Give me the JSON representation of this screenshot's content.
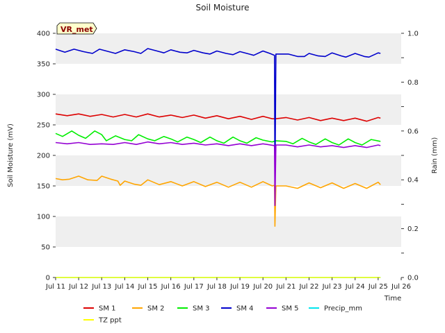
{
  "chart_data": {
    "type": "line",
    "title": "Soil Moisture",
    "badge": "VR_met",
    "xlabel": "Time",
    "ylabel": "Soil Moisture (mV)",
    "y2label": "Rain (mm)",
    "ylim": [
      0,
      400
    ],
    "y2lim": [
      0.0,
      1.0
    ],
    "xlim_days": [
      11,
      26
    ],
    "x_ticks": [
      "Jul 11",
      "Jul 12",
      "Jul 13",
      "Jul 14",
      "Jul 15",
      "Jul 16",
      "Jul 17",
      "Jul 18",
      "Jul 19",
      "Jul 20",
      "Jul 21",
      "Jul 22",
      "Jul 23",
      "Jul 24",
      "Jul 25",
      "Jul 26"
    ],
    "y_ticks": [
      "0",
      "50",
      "100",
      "150",
      "200",
      "250",
      "300",
      "350",
      "400"
    ],
    "y2_ticks": [
      "0.0",
      "0.2",
      "0.4",
      "0.6",
      "0.8",
      "1.0"
    ],
    "grid": "horizontal bands",
    "legend_position": "bottom",
    "series": [
      {
        "name": "SM 1",
        "color": "#dd0000",
        "points": [
          [
            11.0,
            268
          ],
          [
            11.5,
            265
          ],
          [
            12.0,
            268
          ],
          [
            12.5,
            264
          ],
          [
            13.0,
            267
          ],
          [
            13.5,
            263
          ],
          [
            14.0,
            267
          ],
          [
            14.5,
            263
          ],
          [
            15.0,
            268
          ],
          [
            15.5,
            263
          ],
          [
            16.0,
            266
          ],
          [
            16.5,
            262
          ],
          [
            17.0,
            266
          ],
          [
            17.5,
            261
          ],
          [
            18.0,
            265
          ],
          [
            18.5,
            260
          ],
          [
            19.0,
            264
          ],
          [
            19.5,
            259
          ],
          [
            20.0,
            264
          ],
          [
            20.4,
            260
          ],
          [
            20.55,
            260
          ],
          [
            21.0,
            262
          ],
          [
            21.5,
            258
          ],
          [
            22.0,
            262
          ],
          [
            22.5,
            257
          ],
          [
            23.0,
            261
          ],
          [
            23.5,
            257
          ],
          [
            24.0,
            261
          ],
          [
            24.5,
            256
          ],
          [
            25.0,
            262
          ],
          [
            25.1,
            261
          ]
        ]
      },
      {
        "name": "SM 2",
        "color": "#ffa500",
        "points": [
          [
            11.0,
            162
          ],
          [
            11.3,
            160
          ],
          [
            11.6,
            161
          ],
          [
            12.0,
            166
          ],
          [
            12.4,
            160
          ],
          [
            12.8,
            159
          ],
          [
            13.0,
            166
          ],
          [
            13.4,
            161
          ],
          [
            13.7,
            158
          ],
          [
            13.8,
            151
          ],
          [
            14.0,
            158
          ],
          [
            14.4,
            153
          ],
          [
            14.7,
            151
          ],
          [
            15.0,
            160
          ],
          [
            15.5,
            152
          ],
          [
            16.0,
            157
          ],
          [
            16.5,
            150
          ],
          [
            17.0,
            157
          ],
          [
            17.5,
            149
          ],
          [
            18.0,
            156
          ],
          [
            18.5,
            148
          ],
          [
            19.0,
            156
          ],
          [
            19.5,
            148
          ],
          [
            20.0,
            157
          ],
          [
            20.4,
            150
          ],
          [
            20.5,
            151
          ],
          [
            20.52,
            84
          ],
          [
            20.56,
            150
          ],
          [
            21.0,
            150
          ],
          [
            21.5,
            146
          ],
          [
            22.0,
            155
          ],
          [
            22.5,
            147
          ],
          [
            23.0,
            155
          ],
          [
            23.5,
            146
          ],
          [
            24.0,
            154
          ],
          [
            24.5,
            146
          ],
          [
            25.0,
            156
          ],
          [
            25.1,
            152
          ]
        ]
      },
      {
        "name": "SM 3",
        "color": "#00ee00",
        "points": [
          [
            11.0,
            236
          ],
          [
            11.3,
            231
          ],
          [
            11.7,
            240
          ],
          [
            12.0,
            233
          ],
          [
            12.3,
            228
          ],
          [
            12.7,
            240
          ],
          [
            13.0,
            234
          ],
          [
            13.2,
            224
          ],
          [
            13.6,
            232
          ],
          [
            14.0,
            226
          ],
          [
            14.3,
            224
          ],
          [
            14.6,
            234
          ],
          [
            15.0,
            227
          ],
          [
            15.3,
            224
          ],
          [
            15.7,
            231
          ],
          [
            16.0,
            227
          ],
          [
            16.3,
            222
          ],
          [
            16.7,
            230
          ],
          [
            17.0,
            226
          ],
          [
            17.3,
            221
          ],
          [
            17.7,
            230
          ],
          [
            18.0,
            224
          ],
          [
            18.3,
            220
          ],
          [
            18.7,
            230
          ],
          [
            19.0,
            224
          ],
          [
            19.3,
            220
          ],
          [
            19.7,
            229
          ],
          [
            20.0,
            225
          ],
          [
            20.4,
            222
          ],
          [
            20.55,
            224
          ],
          [
            21.0,
            223
          ],
          [
            21.3,
            219
          ],
          [
            21.7,
            228
          ],
          [
            22.0,
            222
          ],
          [
            22.3,
            218
          ],
          [
            22.7,
            227
          ],
          [
            23.0,
            221
          ],
          [
            23.3,
            217
          ],
          [
            23.7,
            227
          ],
          [
            24.0,
            221
          ],
          [
            24.3,
            217
          ],
          [
            24.7,
            226
          ],
          [
            25.1,
            223
          ]
        ]
      },
      {
        "name": "SM 4",
        "color": "#0000cc",
        "points": [
          [
            11.0,
            374
          ],
          [
            11.4,
            369
          ],
          [
            11.8,
            374
          ],
          [
            12.2,
            370
          ],
          [
            12.6,
            367
          ],
          [
            12.9,
            374
          ],
          [
            13.3,
            370
          ],
          [
            13.6,
            367
          ],
          [
            14.0,
            373
          ],
          [
            14.4,
            370
          ],
          [
            14.7,
            367
          ],
          [
            15.0,
            375
          ],
          [
            15.4,
            371
          ],
          [
            15.7,
            368
          ],
          [
            16.0,
            373
          ],
          [
            16.4,
            369
          ],
          [
            16.7,
            368
          ],
          [
            17.0,
            372
          ],
          [
            17.4,
            368
          ],
          [
            17.7,
            366
          ],
          [
            18.0,
            371
          ],
          [
            18.4,
            367
          ],
          [
            18.7,
            365
          ],
          [
            19.0,
            370
          ],
          [
            19.4,
            366
          ],
          [
            19.6,
            364
          ],
          [
            20.0,
            371
          ],
          [
            20.3,
            367
          ],
          [
            20.5,
            364
          ],
          [
            20.52,
            144
          ],
          [
            20.56,
            366
          ],
          [
            20.8,
            366
          ],
          [
            21.1,
            366
          ],
          [
            21.5,
            362
          ],
          [
            21.8,
            362
          ],
          [
            22.0,
            367
          ],
          [
            22.4,
            363
          ],
          [
            22.7,
            362
          ],
          [
            23.0,
            368
          ],
          [
            23.4,
            363
          ],
          [
            23.6,
            361
          ],
          [
            24.0,
            367
          ],
          [
            24.4,
            362
          ],
          [
            24.6,
            361
          ],
          [
            25.0,
            368
          ],
          [
            25.1,
            367
          ]
        ]
      },
      {
        "name": "SM 5",
        "color": "#9400d3",
        "points": [
          [
            11.0,
            221
          ],
          [
            11.5,
            219
          ],
          [
            12.0,
            221
          ],
          [
            12.5,
            218
          ],
          [
            13.0,
            219
          ],
          [
            13.5,
            218
          ],
          [
            14.0,
            221
          ],
          [
            14.5,
            218
          ],
          [
            15.0,
            222
          ],
          [
            15.5,
            219
          ],
          [
            16.0,
            221
          ],
          [
            16.5,
            218
          ],
          [
            17.0,
            220
          ],
          [
            17.5,
            217
          ],
          [
            18.0,
            219
          ],
          [
            18.5,
            216
          ],
          [
            19.0,
            219
          ],
          [
            19.5,
            216
          ],
          [
            20.0,
            219
          ],
          [
            20.5,
            216
          ],
          [
            20.52,
            118
          ],
          [
            20.56,
            217
          ],
          [
            21.0,
            217
          ],
          [
            21.5,
            214
          ],
          [
            22.0,
            217
          ],
          [
            22.5,
            214
          ],
          [
            23.0,
            216
          ],
          [
            23.5,
            213
          ],
          [
            24.0,
            216
          ],
          [
            24.5,
            213
          ],
          [
            25.0,
            217
          ],
          [
            25.1,
            216
          ]
        ]
      },
      {
        "name": "Precip_mm",
        "color": "#00e5ee",
        "points": [
          [
            11.0,
            0
          ],
          [
            25.1,
            0
          ]
        ]
      },
      {
        "name": "TZ ppt",
        "color": "#ffff00",
        "points": [
          [
            11.0,
            0
          ],
          [
            25.1,
            0
          ]
        ]
      }
    ]
  }
}
